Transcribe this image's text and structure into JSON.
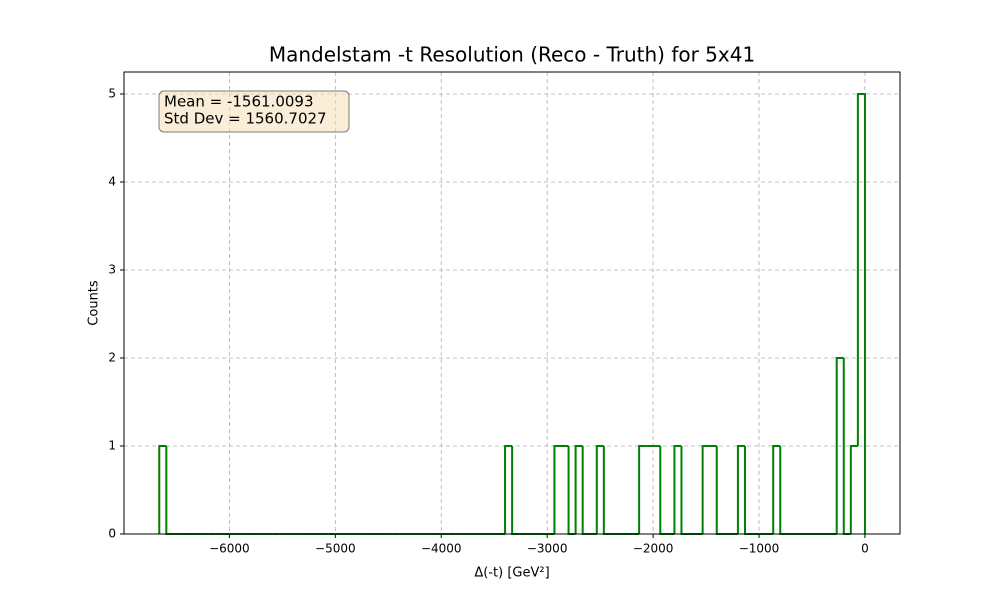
{
  "chart_data": {
    "type": "histogram",
    "title": "Mandelstam -t Resolution (Reco - Truth) for 5x41",
    "x_label": "Δ(-t) [GeV²]",
    "y_label": "Counts",
    "annotation": [
      "Mean = -1561.0093",
      "Std Dev = 1560.7027"
    ],
    "color": "#008000",
    "grid": true,
    "bins": [
      -6662.0,
      -6595.38,
      -6528.76,
      -6462.14,
      -6395.52,
      -6328.9,
      -6262.28,
      -6195.66,
      -6129.04,
      -6062.42,
      -5995.8,
      -5929.18,
      -5862.56,
      -5795.94,
      -5729.32,
      -5662.7,
      -5596.08,
      -5529.46,
      -5462.84,
      -5396.22,
      -5329.6,
      -5262.98,
      -5196.36,
      -5129.74,
      -5063.12,
      -4996.5,
      -4929.88,
      -4863.26,
      -4796.64,
      -4730.02,
      -4663.4,
      -4596.78,
      -4530.16,
      -4463.54,
      -4396.92,
      -4330.3,
      -4263.68,
      -4197.06,
      -4130.44,
      -4063.82,
      -3997.2,
      -3930.58,
      -3863.96,
      -3797.34,
      -3730.72,
      -3664.1,
      -3597.48,
      -3530.86,
      -3464.24,
      -3397.62,
      -3331.0,
      -3264.38,
      -3197.76,
      -3131.14,
      -3064.52,
      -2997.9,
      -2931.28,
      -2864.66,
      -2798.04,
      -2731.42,
      -2664.8,
      -2598.18,
      -2531.56,
      -2464.94,
      -2398.32,
      -2331.7,
      -2265.08,
      -2198.46,
      -2131.84,
      -2065.22,
      -1998.6,
      -1931.98,
      -1865.36,
      -1798.74,
      -1732.12,
      -1665.5,
      -1598.88,
      -1532.26,
      -1465.64,
      -1399.02,
      -1332.4,
      -1265.78,
      -1199.16,
      -1132.54,
      -1065.92,
      -999.3,
      -932.68,
      -866.06,
      -799.44,
      -732.82,
      -666.2,
      -599.58,
      -532.96,
      -466.34,
      -399.72,
      -333.1,
      -266.48,
      -199.86,
      -133.24,
      -66.62,
      0
    ],
    "values": [
      1,
      0,
      0,
      0,
      0,
      0,
      0,
      0,
      0,
      0,
      0,
      0,
      0,
      0,
      0,
      0,
      0,
      0,
      0,
      0,
      0,
      0,
      0,
      0,
      0,
      0,
      0,
      0,
      0,
      0,
      0,
      0,
      0,
      0,
      0,
      0,
      0,
      0,
      0,
      0,
      0,
      0,
      0,
      0,
      0,
      0,
      0,
      0,
      0,
      1,
      0,
      0,
      0,
      0,
      0,
      0,
      1,
      1,
      0,
      1,
      0,
      0,
      1,
      0,
      0,
      0,
      0,
      0,
      1,
      1,
      1,
      0,
      0,
      1,
      0,
      0,
      0,
      1,
      1,
      0,
      0,
      0,
      1,
      0,
      0,
      0,
      0,
      1,
      0,
      0,
      0,
      0,
      0,
      0,
      0,
      0,
      2,
      0,
      1,
      5
    ],
    "xlim": [
      -6995,
      331
    ],
    "ylim": [
      0,
      5.25
    ],
    "xticks": [
      {
        "value": -6000,
        "label": "−6000"
      },
      {
        "value": -5000,
        "label": "−5000"
      },
      {
        "value": -4000,
        "label": "−4000"
      },
      {
        "value": -3000,
        "label": "−3000"
      },
      {
        "value": -2000,
        "label": "−2000"
      },
      {
        "value": -1000,
        "label": "−1000"
      },
      0
    ],
    "yticks": [
      0,
      1,
      2,
      3,
      4,
      5
    ]
  }
}
